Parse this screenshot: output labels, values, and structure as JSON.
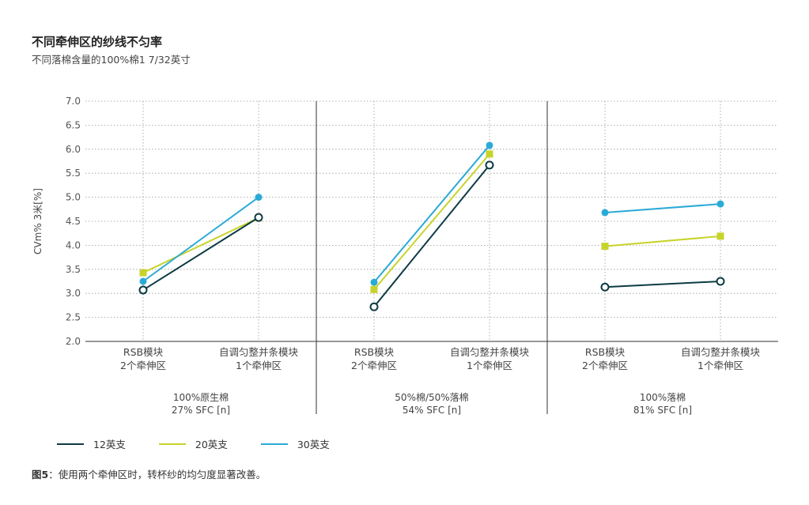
{
  "header": {
    "title": "不同牵伸区的纱线不匀率",
    "subtitle": "不同落棉含量的100%棉1 7/32英寸"
  },
  "caption": {
    "label": "图5",
    "text": "：使用两个牵伸区时，转杯纱的均匀度显著改善。"
  },
  "colors": {
    "s12": "#0d3b44",
    "s20": "#c8d32a",
    "s30": "#2aaad6"
  },
  "chart_data": {
    "type": "line",
    "title": "不同牵伸区的纱线不匀率",
    "subtitle": "不同落棉含量的100%棉1 7/32英寸",
    "ylabel": "CVm% 3米[%]",
    "ylim": [
      2.0,
      7.0
    ],
    "yticks": [
      "2.0",
      "2.5",
      "3.0",
      "3.5",
      "4.0",
      "4.5",
      "5.0",
      "5.5",
      "6.0",
      "6.5",
      "7.0"
    ],
    "grid": true,
    "legend_position": "bottom-left",
    "groups": [
      {
        "label_line1": "100%原生棉",
        "label_line2": "27% SFC [n]",
        "categories": [
          {
            "line1": "RSB模块",
            "line2": "2个牵伸区"
          },
          {
            "line1": "自调匀整并条模块",
            "line2": "1个牵伸区"
          }
        ],
        "series": [
          {
            "name": "12英支",
            "values": [
              3.07,
              4.58
            ]
          },
          {
            "name": "20英支",
            "values": [
              3.43,
              4.57
            ]
          },
          {
            "name": "30英支",
            "values": [
              3.25,
              5.0
            ]
          }
        ]
      },
      {
        "label_line1": "50%棉/50%落棉",
        "label_line2": "54% SFC [n]",
        "categories": [
          {
            "line1": "RSB模块",
            "line2": "2个牵伸区"
          },
          {
            "line1": "自调匀整并条模块",
            "line2": "1个牵伸区"
          }
        ],
        "series": [
          {
            "name": "12英支",
            "values": [
              2.72,
              5.67
            ]
          },
          {
            "name": "20英支",
            "values": [
              3.08,
              5.9
            ]
          },
          {
            "name": "30英支",
            "values": [
              3.23,
              6.08
            ]
          }
        ]
      },
      {
        "label_line1": "100%落棉",
        "label_line2": "81% SFC [n]",
        "categories": [
          {
            "line1": "RSB模块",
            "line2": "2个牵伸区"
          },
          {
            "line1": "自调匀整并条模块",
            "line2": "1个牵伸区"
          }
        ],
        "series": [
          {
            "name": "12英支",
            "values": [
              3.13,
              3.25
            ]
          },
          {
            "name": "20英支",
            "values": [
              3.98,
              4.19
            ]
          },
          {
            "name": "30英支",
            "values": [
              4.68,
              4.86
            ]
          }
        ]
      }
    ],
    "legend": [
      "12英支",
      "20英支",
      "30英支"
    ]
  }
}
